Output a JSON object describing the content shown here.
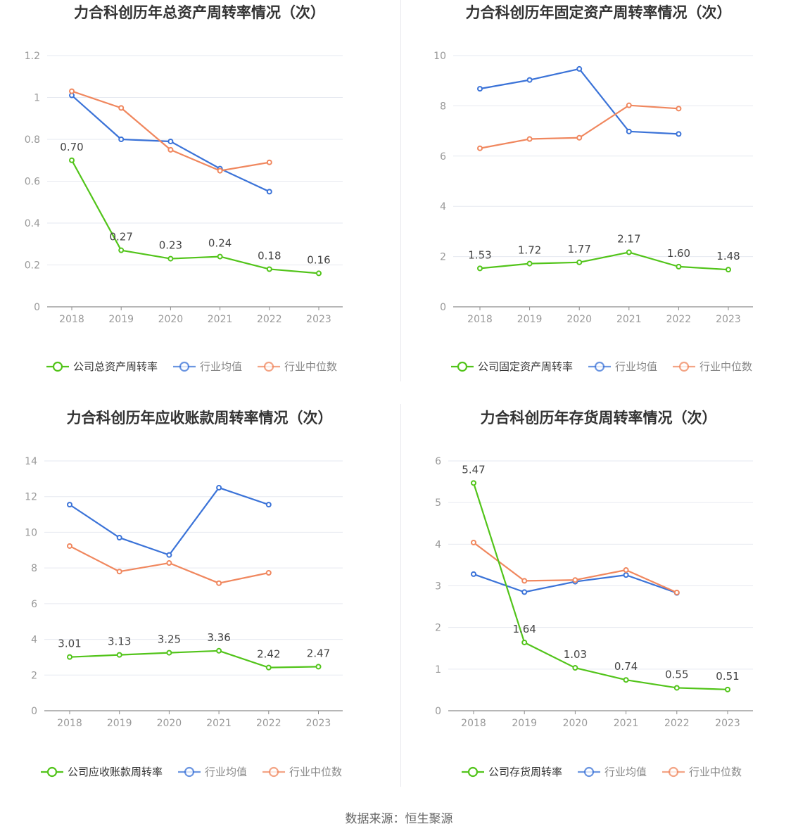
{
  "colors": {
    "company": "#52c41a",
    "industry_avg": "#3b73d8",
    "industry_median": "#f0875e",
    "grid": "#e6e9f0",
    "axis": "#999999",
    "title": "#333333"
  },
  "source": "数据来源：恒生聚源",
  "chart_data": [
    {
      "type": "line",
      "title": "力合科创历年总资产周转率情况（次）",
      "categories": [
        "2018",
        "2019",
        "2020",
        "2021",
        "2022",
        "2023"
      ],
      "ylim": [
        0,
        1.2
      ],
      "yticks": [
        "0",
        "0.2",
        "0.4",
        "0.6",
        "0.8",
        "1",
        "1.2"
      ],
      "ytick_values": [
        0,
        0.2,
        0.4,
        0.6,
        0.8,
        1,
        1.2
      ],
      "legend_position": "bottom",
      "grid": true,
      "series": [
        {
          "name": "公司总资产周转率",
          "values": [
            0.7,
            0.27,
            0.23,
            0.24,
            0.18,
            0.16
          ],
          "labels": [
            "0.70",
            "0.27",
            "0.23",
            "0.24",
            "0.18",
            "0.16"
          ]
        },
        {
          "name": "行业均值",
          "values": [
            1.01,
            0.8,
            0.79,
            0.66,
            0.55,
            null
          ]
        },
        {
          "name": "行业中位数",
          "values": [
            1.03,
            0.95,
            0.75,
            0.65,
            0.69,
            null
          ]
        }
      ]
    },
    {
      "type": "line",
      "title": "力合科创历年固定资产周转率情况（次）",
      "categories": [
        "2018",
        "2019",
        "2020",
        "2021",
        "2022",
        "2023"
      ],
      "ylim": [
        0,
        10
      ],
      "yticks": [
        "0",
        "2",
        "4",
        "6",
        "8",
        "10"
      ],
      "ytick_values": [
        0,
        2,
        4,
        6,
        8,
        10
      ],
      "legend_position": "bottom",
      "grid": true,
      "series": [
        {
          "name": "公司固定资产周转率",
          "values": [
            1.53,
            1.72,
            1.77,
            2.17,
            1.6,
            1.48
          ],
          "labels": [
            "1.53",
            "1.72",
            "1.77",
            "2.17",
            "1.60",
            "1.48"
          ]
        },
        {
          "name": "行业均值",
          "values": [
            8.68,
            9.03,
            9.47,
            6.98,
            6.88,
            null
          ]
        },
        {
          "name": "行业中位数",
          "values": [
            6.31,
            6.68,
            6.73,
            8.02,
            7.89,
            null
          ]
        }
      ]
    },
    {
      "type": "line",
      "title": "力合科创历年应收账款周转率情况（次）",
      "categories": [
        "2018",
        "2019",
        "2020",
        "2021",
        "2022",
        "2023"
      ],
      "ylim": [
        0,
        14
      ],
      "yticks": [
        "0",
        "2",
        "4",
        "6",
        "8",
        "10",
        "12",
        "14"
      ],
      "ytick_values": [
        0,
        2,
        4,
        6,
        8,
        10,
        12,
        14
      ],
      "legend_position": "bottom",
      "grid": true,
      "series": [
        {
          "name": "公司应收账款周转率",
          "values": [
            3.01,
            3.13,
            3.25,
            3.36,
            2.42,
            2.47
          ],
          "labels": [
            "3.01",
            "3.13",
            "3.25",
            "3.36",
            "2.42",
            "2.47"
          ]
        },
        {
          "name": "行业均值",
          "values": [
            11.55,
            9.7,
            8.73,
            12.5,
            11.55,
            null
          ]
        },
        {
          "name": "行业中位数",
          "values": [
            9.23,
            7.8,
            8.28,
            7.15,
            7.73,
            null
          ]
        }
      ]
    },
    {
      "type": "line",
      "title": "力合科创历年存货周转率情况（次）",
      "categories": [
        "2018",
        "2019",
        "2020",
        "2021",
        "2022",
        "2023"
      ],
      "ylim": [
        0,
        6
      ],
      "yticks": [
        "0",
        "1",
        "2",
        "3",
        "4",
        "5",
        "6"
      ],
      "ytick_values": [
        0,
        1,
        2,
        3,
        4,
        5,
        6
      ],
      "legend_position": "bottom",
      "grid": true,
      "series": [
        {
          "name": "公司存货周转率",
          "values": [
            5.47,
            1.64,
            1.03,
            0.74,
            0.55,
            0.51
          ],
          "labels": [
            "5.47",
            "1.64",
            "1.03",
            "0.74",
            "0.55",
            "0.51"
          ]
        },
        {
          "name": "行业均值",
          "values": [
            3.28,
            2.85,
            3.1,
            3.26,
            2.83,
            null
          ]
        },
        {
          "name": "行业中位数",
          "values": [
            4.04,
            3.12,
            3.14,
            3.38,
            2.84,
            null
          ]
        }
      ]
    }
  ]
}
